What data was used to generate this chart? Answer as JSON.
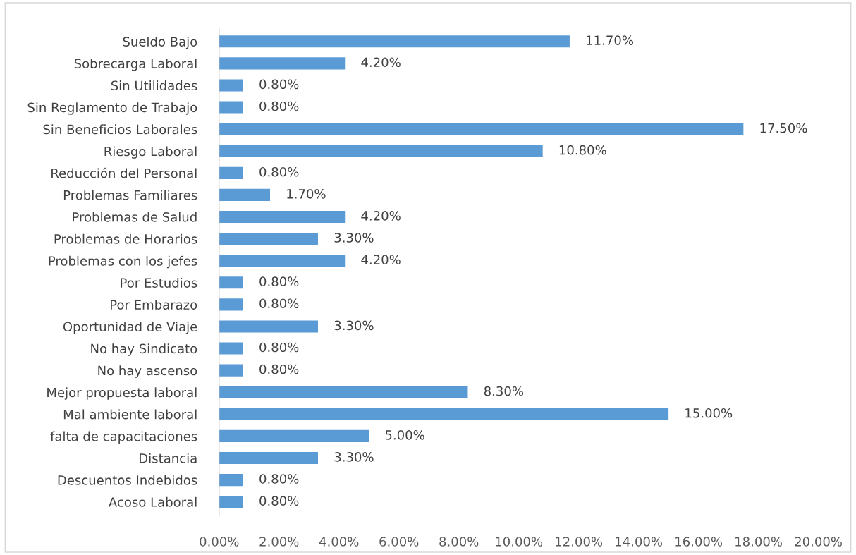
{
  "chart_data": {
    "type": "bar",
    "orientation": "horizontal",
    "categories": [
      "Sueldo Bajo",
      "Sobrecarga Laboral",
      "Sin Utilidades",
      "Sin Reglamento de Trabajo",
      "Sin Beneficios Laborales",
      "Riesgo Laboral",
      "Reducción del Personal",
      "Problemas Familiares",
      "Problemas de Salud",
      "Problemas de Horarios",
      "Problemas con los jefes",
      "Por Estudios",
      "Por Embarazo",
      "Oportunidad de Viaje",
      "No hay Sindicato",
      "No hay ascenso",
      "Mejor propuesta laboral",
      "Mal ambiente laboral",
      "falta de capacitaciones",
      "Distancia",
      "Descuentos Indebidos",
      "Acoso Laboral"
    ],
    "values": [
      11.7,
      4.2,
      0.8,
      0.8,
      17.5,
      10.8,
      0.8,
      1.7,
      4.2,
      3.3,
      4.2,
      0.8,
      0.8,
      3.3,
      0.8,
      0.8,
      8.3,
      15.0,
      5.0,
      3.3,
      0.8,
      0.8
    ],
    "value_labels": [
      "11.70%",
      "4.20%",
      "0.80%",
      "0.80%",
      "17.50%",
      "10.80%",
      "0.80%",
      "1.70%",
      "4.20%",
      "3.30%",
      "4.20%",
      "0.80%",
      "0.80%",
      "3.30%",
      "0.80%",
      "0.80%",
      "8.30%",
      "15.00%",
      "5.00%",
      "3.30%",
      "0.80%",
      "0.80%"
    ],
    "color": "#5b9bd5",
    "xlim": [
      0,
      20
    ],
    "xticks": [
      {
        "value": 0,
        "label": "0.00%"
      },
      {
        "value": 2,
        "label": "2.00%"
      },
      {
        "value": 4,
        "label": "4.00%"
      },
      {
        "value": 6,
        "label": "6.00%"
      },
      {
        "value": 8,
        "label": "8.00%"
      },
      {
        "value": 10,
        "label": "10.00%"
      },
      {
        "value": 12,
        "label": "12.00%"
      },
      {
        "value": 14,
        "label": "14.00%"
      },
      {
        "value": 16,
        "label": "16.00%"
      },
      {
        "value": 18,
        "label": "18.00%"
      },
      {
        "value": 20,
        "label": "20.00%"
      }
    ],
    "grid": false
  }
}
